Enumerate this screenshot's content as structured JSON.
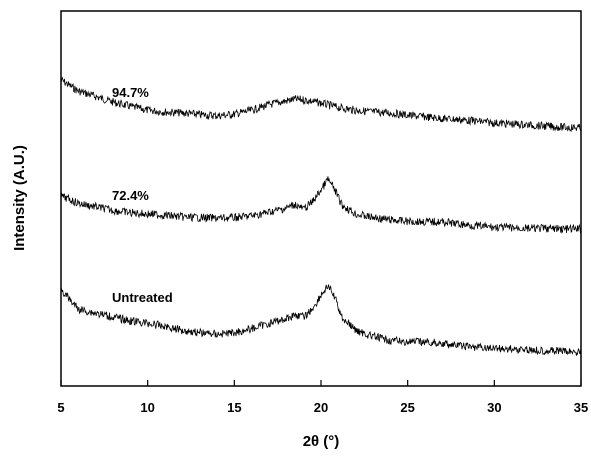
{
  "chart_data": {
    "type": "line",
    "title": "",
    "xlabel": "2θ (°)",
    "ylabel": "Intensity (A.U.)",
    "xlim": [
      5,
      35
    ],
    "xticks": [
      5,
      10,
      15,
      20,
      25,
      30,
      35
    ],
    "y_tick_labels": false,
    "grid": false,
    "legend": "none",
    "series": [
      {
        "name": "94.7%",
        "color": "#000000",
        "points": [
          [
            5,
            1.0
          ],
          [
            6,
            0.8
          ],
          [
            7,
            0.7
          ],
          [
            8,
            0.6
          ],
          [
            9,
            0.52
          ],
          [
            10,
            0.45
          ],
          [
            11,
            0.42
          ],
          [
            12,
            0.4
          ],
          [
            13,
            0.37
          ],
          [
            14,
            0.35
          ],
          [
            15,
            0.38
          ],
          [
            16,
            0.45
          ],
          [
            17,
            0.55
          ],
          [
            18,
            0.62
          ],
          [
            18.5,
            0.65
          ],
          [
            19,
            0.64
          ],
          [
            20,
            0.58
          ],
          [
            21,
            0.5
          ],
          [
            22,
            0.45
          ],
          [
            23,
            0.42
          ],
          [
            24,
            0.4
          ],
          [
            25,
            0.36
          ],
          [
            26,
            0.33
          ],
          [
            27,
            0.3
          ],
          [
            28,
            0.28
          ],
          [
            29,
            0.25
          ],
          [
            30,
            0.22
          ],
          [
            31,
            0.2
          ],
          [
            32,
            0.18
          ],
          [
            33,
            0.16
          ],
          [
            34,
            0.14
          ],
          [
            35,
            0.13
          ]
        ]
      },
      {
        "name": "72.4%",
        "color": "#000000",
        "points": [
          [
            5,
            0.6
          ],
          [
            6,
            0.48
          ],
          [
            7,
            0.42
          ],
          [
            8,
            0.36
          ],
          [
            9,
            0.32
          ],
          [
            10,
            0.3
          ],
          [
            11,
            0.28
          ],
          [
            12,
            0.25
          ],
          [
            13,
            0.24
          ],
          [
            14,
            0.23
          ],
          [
            15,
            0.24
          ],
          [
            16,
            0.27
          ],
          [
            17,
            0.33
          ],
          [
            18,
            0.4
          ],
          [
            18.5,
            0.46
          ],
          [
            19,
            0.38
          ],
          [
            19.5,
            0.5
          ],
          [
            20,
            0.7
          ],
          [
            20.4,
            0.88
          ],
          [
            20.8,
            0.7
          ],
          [
            21.2,
            0.45
          ],
          [
            22,
            0.3
          ],
          [
            23,
            0.24
          ],
          [
            24,
            0.2
          ],
          [
            25,
            0.18
          ],
          [
            26,
            0.17
          ],
          [
            27,
            0.17
          ],
          [
            28,
            0.13
          ],
          [
            29,
            0.1
          ],
          [
            30,
            0.08
          ],
          [
            31,
            0.07
          ],
          [
            32,
            0.06
          ],
          [
            33,
            0.06
          ],
          [
            34,
            0.05
          ],
          [
            35,
            0.05
          ]
        ]
      },
      {
        "name": "Untreated",
        "color": "#000000",
        "points": [
          [
            5,
            0.85
          ],
          [
            6,
            0.6
          ],
          [
            7,
            0.55
          ],
          [
            8,
            0.5
          ],
          [
            9,
            0.45
          ],
          [
            10,
            0.42
          ],
          [
            11,
            0.38
          ],
          [
            12,
            0.33
          ],
          [
            13,
            0.3
          ],
          [
            14,
            0.28
          ],
          [
            15,
            0.3
          ],
          [
            16,
            0.35
          ],
          [
            17,
            0.42
          ],
          [
            18,
            0.48
          ],
          [
            18.5,
            0.53
          ],
          [
            19,
            0.5
          ],
          [
            19.5,
            0.6
          ],
          [
            20,
            0.78
          ],
          [
            20.4,
            0.9
          ],
          [
            20.8,
            0.75
          ],
          [
            21.2,
            0.5
          ],
          [
            22,
            0.33
          ],
          [
            23,
            0.25
          ],
          [
            24,
            0.2
          ],
          [
            25,
            0.18
          ],
          [
            26,
            0.18
          ],
          [
            27,
            0.16
          ],
          [
            28,
            0.13
          ],
          [
            29,
            0.11
          ],
          [
            30,
            0.1
          ],
          [
            31,
            0.09
          ],
          [
            32,
            0.08
          ],
          [
            33,
            0.07
          ],
          [
            34,
            0.06
          ],
          [
            35,
            0.05
          ]
        ]
      }
    ]
  }
}
